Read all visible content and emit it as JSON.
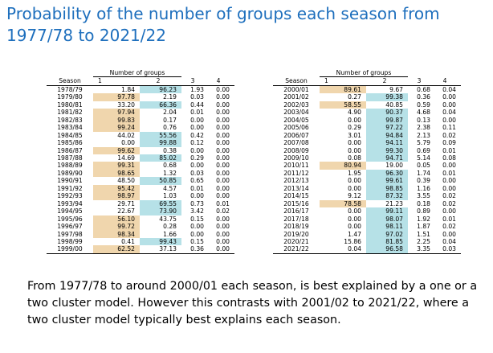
{
  "title": "Probability of the number of groups each season from 1977/78 to 2021/22",
  "table_header": {
    "season": "Season",
    "number_of_groups": "Number of groups",
    "cols": [
      "1",
      "2",
      "3",
      "4"
    ]
  },
  "colors": {
    "highlight_one": "#f0d6ad",
    "highlight_two": "#b6e1e7",
    "title": "#1e6fbd"
  },
  "left_table": [
    {
      "season": "1978/79",
      "v": [
        "1.84",
        "96.23",
        "1.93",
        "0.00"
      ],
      "hl": 2
    },
    {
      "season": "1979/80",
      "v": [
        "97.78",
        "2.19",
        "0.03",
        "0.00"
      ],
      "hl": 1
    },
    {
      "season": "1980/81",
      "v": [
        "33.20",
        "66.36",
        "0.44",
        "0.00"
      ],
      "hl": 2
    },
    {
      "season": "1981/82",
      "v": [
        "97.94",
        "2.04",
        "0.01",
        "0.00"
      ],
      "hl": 1
    },
    {
      "season": "1982/83",
      "v": [
        "99.83",
        "0.17",
        "0.00",
        "0.00"
      ],
      "hl": 1
    },
    {
      "season": "1983/84",
      "v": [
        "99.24",
        "0.76",
        "0.00",
        "0.00"
      ],
      "hl": 1
    },
    {
      "season": "1984/85",
      "v": [
        "44.02",
        "55.56",
        "0.42",
        "0.00"
      ],
      "hl": 2
    },
    {
      "season": "1985/86",
      "v": [
        "0.00",
        "99.88",
        "0.12",
        "0.00"
      ],
      "hl": 2
    },
    {
      "season": "1986/87",
      "v": [
        "99.62",
        "0.38",
        "0.00",
        "0.00"
      ],
      "hl": 1
    },
    {
      "season": "1987/88",
      "v": [
        "14.69",
        "85.02",
        "0.29",
        "0.00"
      ],
      "hl": 2
    },
    {
      "season": "1988/89",
      "v": [
        "99.31",
        "0.68",
        "0.00",
        "0.00"
      ],
      "hl": 1
    },
    {
      "season": "1989/90",
      "v": [
        "98.65",
        "1.32",
        "0.03",
        "0.00"
      ],
      "hl": 1
    },
    {
      "season": "1990/91",
      "v": [
        "48.50",
        "50.85",
        "0.65",
        "0.00"
      ],
      "hl": 2
    },
    {
      "season": "1991/92",
      "v": [
        "95.42",
        "4.57",
        "0.01",
        "0.00"
      ],
      "hl": 1
    },
    {
      "season": "1992/93",
      "v": [
        "98.97",
        "1.03",
        "0.00",
        "0.00"
      ],
      "hl": 1
    },
    {
      "season": "1993/94",
      "v": [
        "29.71",
        "69.55",
        "0.73",
        "0.01"
      ],
      "hl": 2
    },
    {
      "season": "1994/95",
      "v": [
        "22.67",
        "73.90",
        "3.42",
        "0.02"
      ],
      "hl": 2
    },
    {
      "season": "1995/96",
      "v": [
        "56.10",
        "43.75",
        "0.15",
        "0.00"
      ],
      "hl": 1
    },
    {
      "season": "1996/97",
      "v": [
        "99.72",
        "0.28",
        "0.00",
        "0.00"
      ],
      "hl": 1
    },
    {
      "season": "1997/98",
      "v": [
        "98.34",
        "1.66",
        "0.00",
        "0.00"
      ],
      "hl": 1
    },
    {
      "season": "1998/99",
      "v": [
        "0.41",
        "99.43",
        "0.15",
        "0.00"
      ],
      "hl": 2
    },
    {
      "season": "1999/00",
      "v": [
        "62.52",
        "37.13",
        "0.36",
        "0.00"
      ],
      "hl": 1
    }
  ],
  "right_table": [
    {
      "season": "2000/01",
      "v": [
        "89.61",
        "9.67",
        "0.68",
        "0.04"
      ],
      "hl": 1
    },
    {
      "season": "2001/02",
      "v": [
        "0.27",
        "99.38",
        "0.36",
        "0.00"
      ],
      "hl": 2
    },
    {
      "season": "2002/03",
      "v": [
        "58.55",
        "40.85",
        "0.59",
        "0.00"
      ],
      "hl": 1
    },
    {
      "season": "2003/04",
      "v": [
        "4.90",
        "90.37",
        "4.68",
        "0.04"
      ],
      "hl": 2
    },
    {
      "season": "2004/05",
      "v": [
        "0.00",
        "99.87",
        "0.13",
        "0.00"
      ],
      "hl": 2
    },
    {
      "season": "2005/06",
      "v": [
        "0.29",
        "97.22",
        "2.38",
        "0.11"
      ],
      "hl": 2
    },
    {
      "season": "2006/07",
      "v": [
        "3.01",
        "94.84",
        "2.13",
        "0.02"
      ],
      "hl": 2
    },
    {
      "season": "2007/08",
      "v": [
        "0.00",
        "94.11",
        "5.79",
        "0.09"
      ],
      "hl": 2
    },
    {
      "season": "2008/09",
      "v": [
        "0.00",
        "99.30",
        "0.69",
        "0.01"
      ],
      "hl": 2
    },
    {
      "season": "2009/10",
      "v": [
        "0.08",
        "94.71",
        "5.14",
        "0.08"
      ],
      "hl": 2
    },
    {
      "season": "2010/11",
      "v": [
        "80.94",
        "19.00",
        "0.05",
        "0.00"
      ],
      "hl": 1
    },
    {
      "season": "2011/12",
      "v": [
        "1.95",
        "96.30",
        "1.74",
        "0.01"
      ],
      "hl": 2
    },
    {
      "season": "2012/13",
      "v": [
        "0.00",
        "99.61",
        "0.39",
        "0.00"
      ],
      "hl": 2
    },
    {
      "season": "2013/14",
      "v": [
        "0.00",
        "98.85",
        "1.16",
        "0.00"
      ],
      "hl": 2
    },
    {
      "season": "2014/15",
      "v": [
        "9.12",
        "87.32",
        "3.55",
        "0.02"
      ],
      "hl": 2
    },
    {
      "season": "2015/16",
      "v": [
        "78.58",
        "21.23",
        "0.18",
        "0.02"
      ],
      "hl": 1
    },
    {
      "season": "2016/17",
      "v": [
        "0.00",
        "99.11",
        "0.89",
        "0.00"
      ],
      "hl": 2
    },
    {
      "season": "2017/18",
      "v": [
        "0.00",
        "98.07",
        "1.92",
        "0.01"
      ],
      "hl": 2
    },
    {
      "season": "2018/19",
      "v": [
        "0.00",
        "98.11",
        "1.87",
        "0.02"
      ],
      "hl": 2
    },
    {
      "season": "2019/20",
      "v": [
        "1.47",
        "97.02",
        "1.51",
        "0.00"
      ],
      "hl": 2
    },
    {
      "season": "2020/21",
      "v": [
        "15.86",
        "81.85",
        "2.25",
        "0.04"
      ],
      "hl": 2
    },
    {
      "season": "2021/22",
      "v": [
        "0.04",
        "96.58",
        "3.35",
        "0.03"
      ],
      "hl": 2
    }
  ],
  "caption": "From 1977/78 to around 2000/01 each season, is best explained by a one or a two cluster model. However this contrasts with 2001/02 to 2021/22, where a two cluster model typically best explains each season."
}
